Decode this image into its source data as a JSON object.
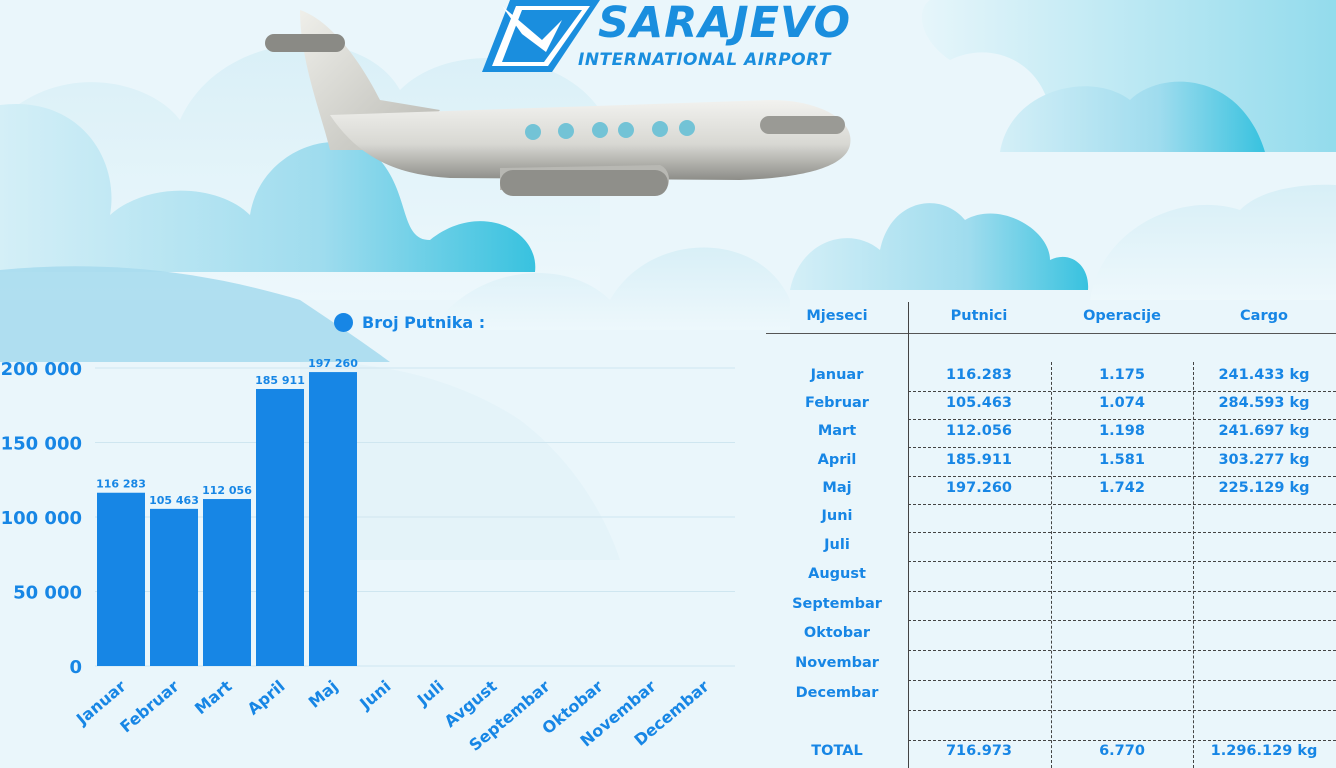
{
  "logo": {
    "title": "SARAJEVO",
    "subtitle": "INTERNATIONAL AIRPORT"
  },
  "colors": {
    "bar": "#1786e5",
    "text": "#1786e5",
    "cloud": "#a6dcee",
    "cloud_dark": "#4cc7e0",
    "sky": "#eaf6fb"
  },
  "chart_data": {
    "type": "bar",
    "legend": "Broj Putnika :",
    "categories": [
      "Januar",
      "Februar",
      "Mart",
      "April",
      "Maj",
      "Juni",
      "Juli",
      "Avgust",
      "Septembar",
      "Oktobar",
      "Novembar",
      "Decembar"
    ],
    "series": [
      {
        "name": "Broj Putnika",
        "values": [
          116283,
          105463,
          112056,
          185911,
          197260,
          null,
          null,
          null,
          null,
          null,
          null,
          null
        ],
        "value_labels": [
          "116 283",
          "105 463",
          "112 056",
          "185 911",
          "197 260",
          "",
          "",
          "",
          "",
          "",
          "",
          ""
        ]
      }
    ],
    "ylim": [
      0,
      200000
    ],
    "yticks": [
      0,
      50000,
      100000,
      150000,
      200000
    ],
    "ytick_labels": [
      "0",
      "50 000",
      "100 000",
      "150 000",
      "200 000"
    ],
    "grid": true,
    "legend_position": "top"
  },
  "table": {
    "headers": [
      "Mjeseci",
      "Putnici",
      "Operacije",
      "Cargo"
    ],
    "rows": [
      {
        "month": "Januar",
        "putnici": "116.283",
        "operacije": "1.175",
        "cargo": "241.433 kg"
      },
      {
        "month": "Februar",
        "putnici": "105.463",
        "operacije": "1.074",
        "cargo": "284.593 kg"
      },
      {
        "month": "Mart",
        "putnici": "112.056",
        "operacije": "1.198",
        "cargo": "241.697 kg"
      },
      {
        "month": "April",
        "putnici": "185.911",
        "operacije": "1.581",
        "cargo": "303.277 kg"
      },
      {
        "month": "Maj",
        "putnici": "197.260",
        "operacije": "1.742",
        "cargo": "225.129 kg"
      },
      {
        "month": "Juni",
        "putnici": "",
        "operacije": "",
        "cargo": ""
      },
      {
        "month": "Juli",
        "putnici": "",
        "operacije": "",
        "cargo": ""
      },
      {
        "month": "August",
        "putnici": "",
        "operacije": "",
        "cargo": ""
      },
      {
        "month": "Septembar",
        "putnici": "",
        "operacije": "",
        "cargo": ""
      },
      {
        "month": "Oktobar",
        "putnici": "",
        "operacije": "",
        "cargo": ""
      },
      {
        "month": "Novembar",
        "putnici": "",
        "operacije": "",
        "cargo": ""
      },
      {
        "month": "Decembar",
        "putnici": "",
        "operacije": "",
        "cargo": ""
      }
    ],
    "total": {
      "label": "TOTAL",
      "putnici": "716.973",
      "operacije": "6.770",
      "cargo": "1.296.129 kg"
    }
  }
}
